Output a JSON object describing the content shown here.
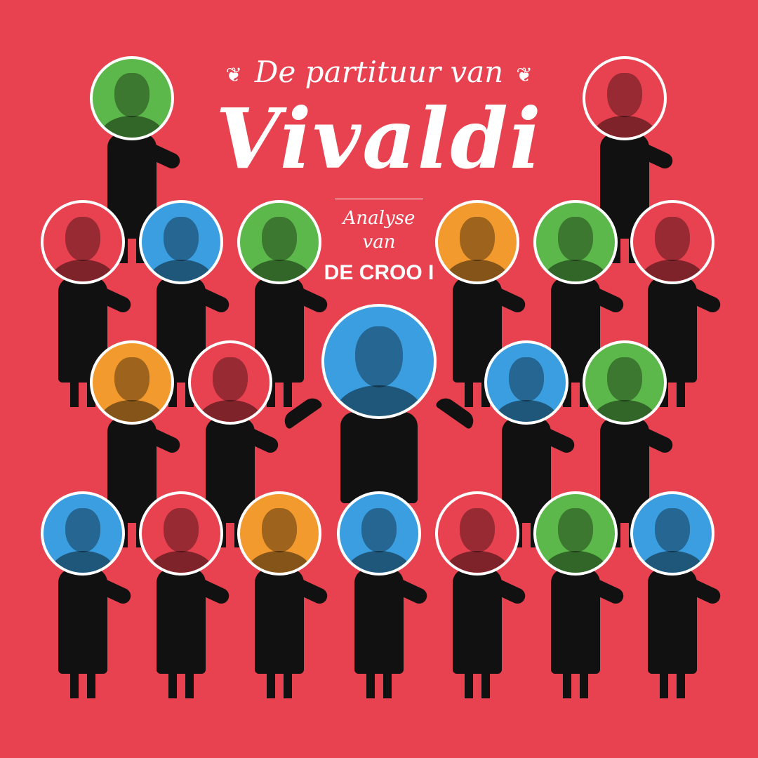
{
  "header": {
    "pretitle": "De partituur van",
    "title": "Vivaldi",
    "ornament_left": "❦",
    "ornament_right": "❦",
    "analyse": "Analyse",
    "van": "van",
    "subject": "DE CROO I"
  },
  "colors": {
    "background": "#e8414f",
    "green": "#5cb84a",
    "blue": "#3a9ee0",
    "orange": "#f39a2e",
    "red": "#e8414f",
    "silhouette": "#111111"
  },
  "rows": [
    [
      "green",
      "red"
    ],
    [
      "red",
      "blue",
      "green",
      "orange",
      "green",
      "red"
    ],
    [
      "blue"
    ],
    [
      "orange",
      "red",
      "blue",
      "green"
    ],
    [
      "blue",
      "red",
      "orange",
      "blue",
      "red",
      "green",
      "blue"
    ]
  ]
}
